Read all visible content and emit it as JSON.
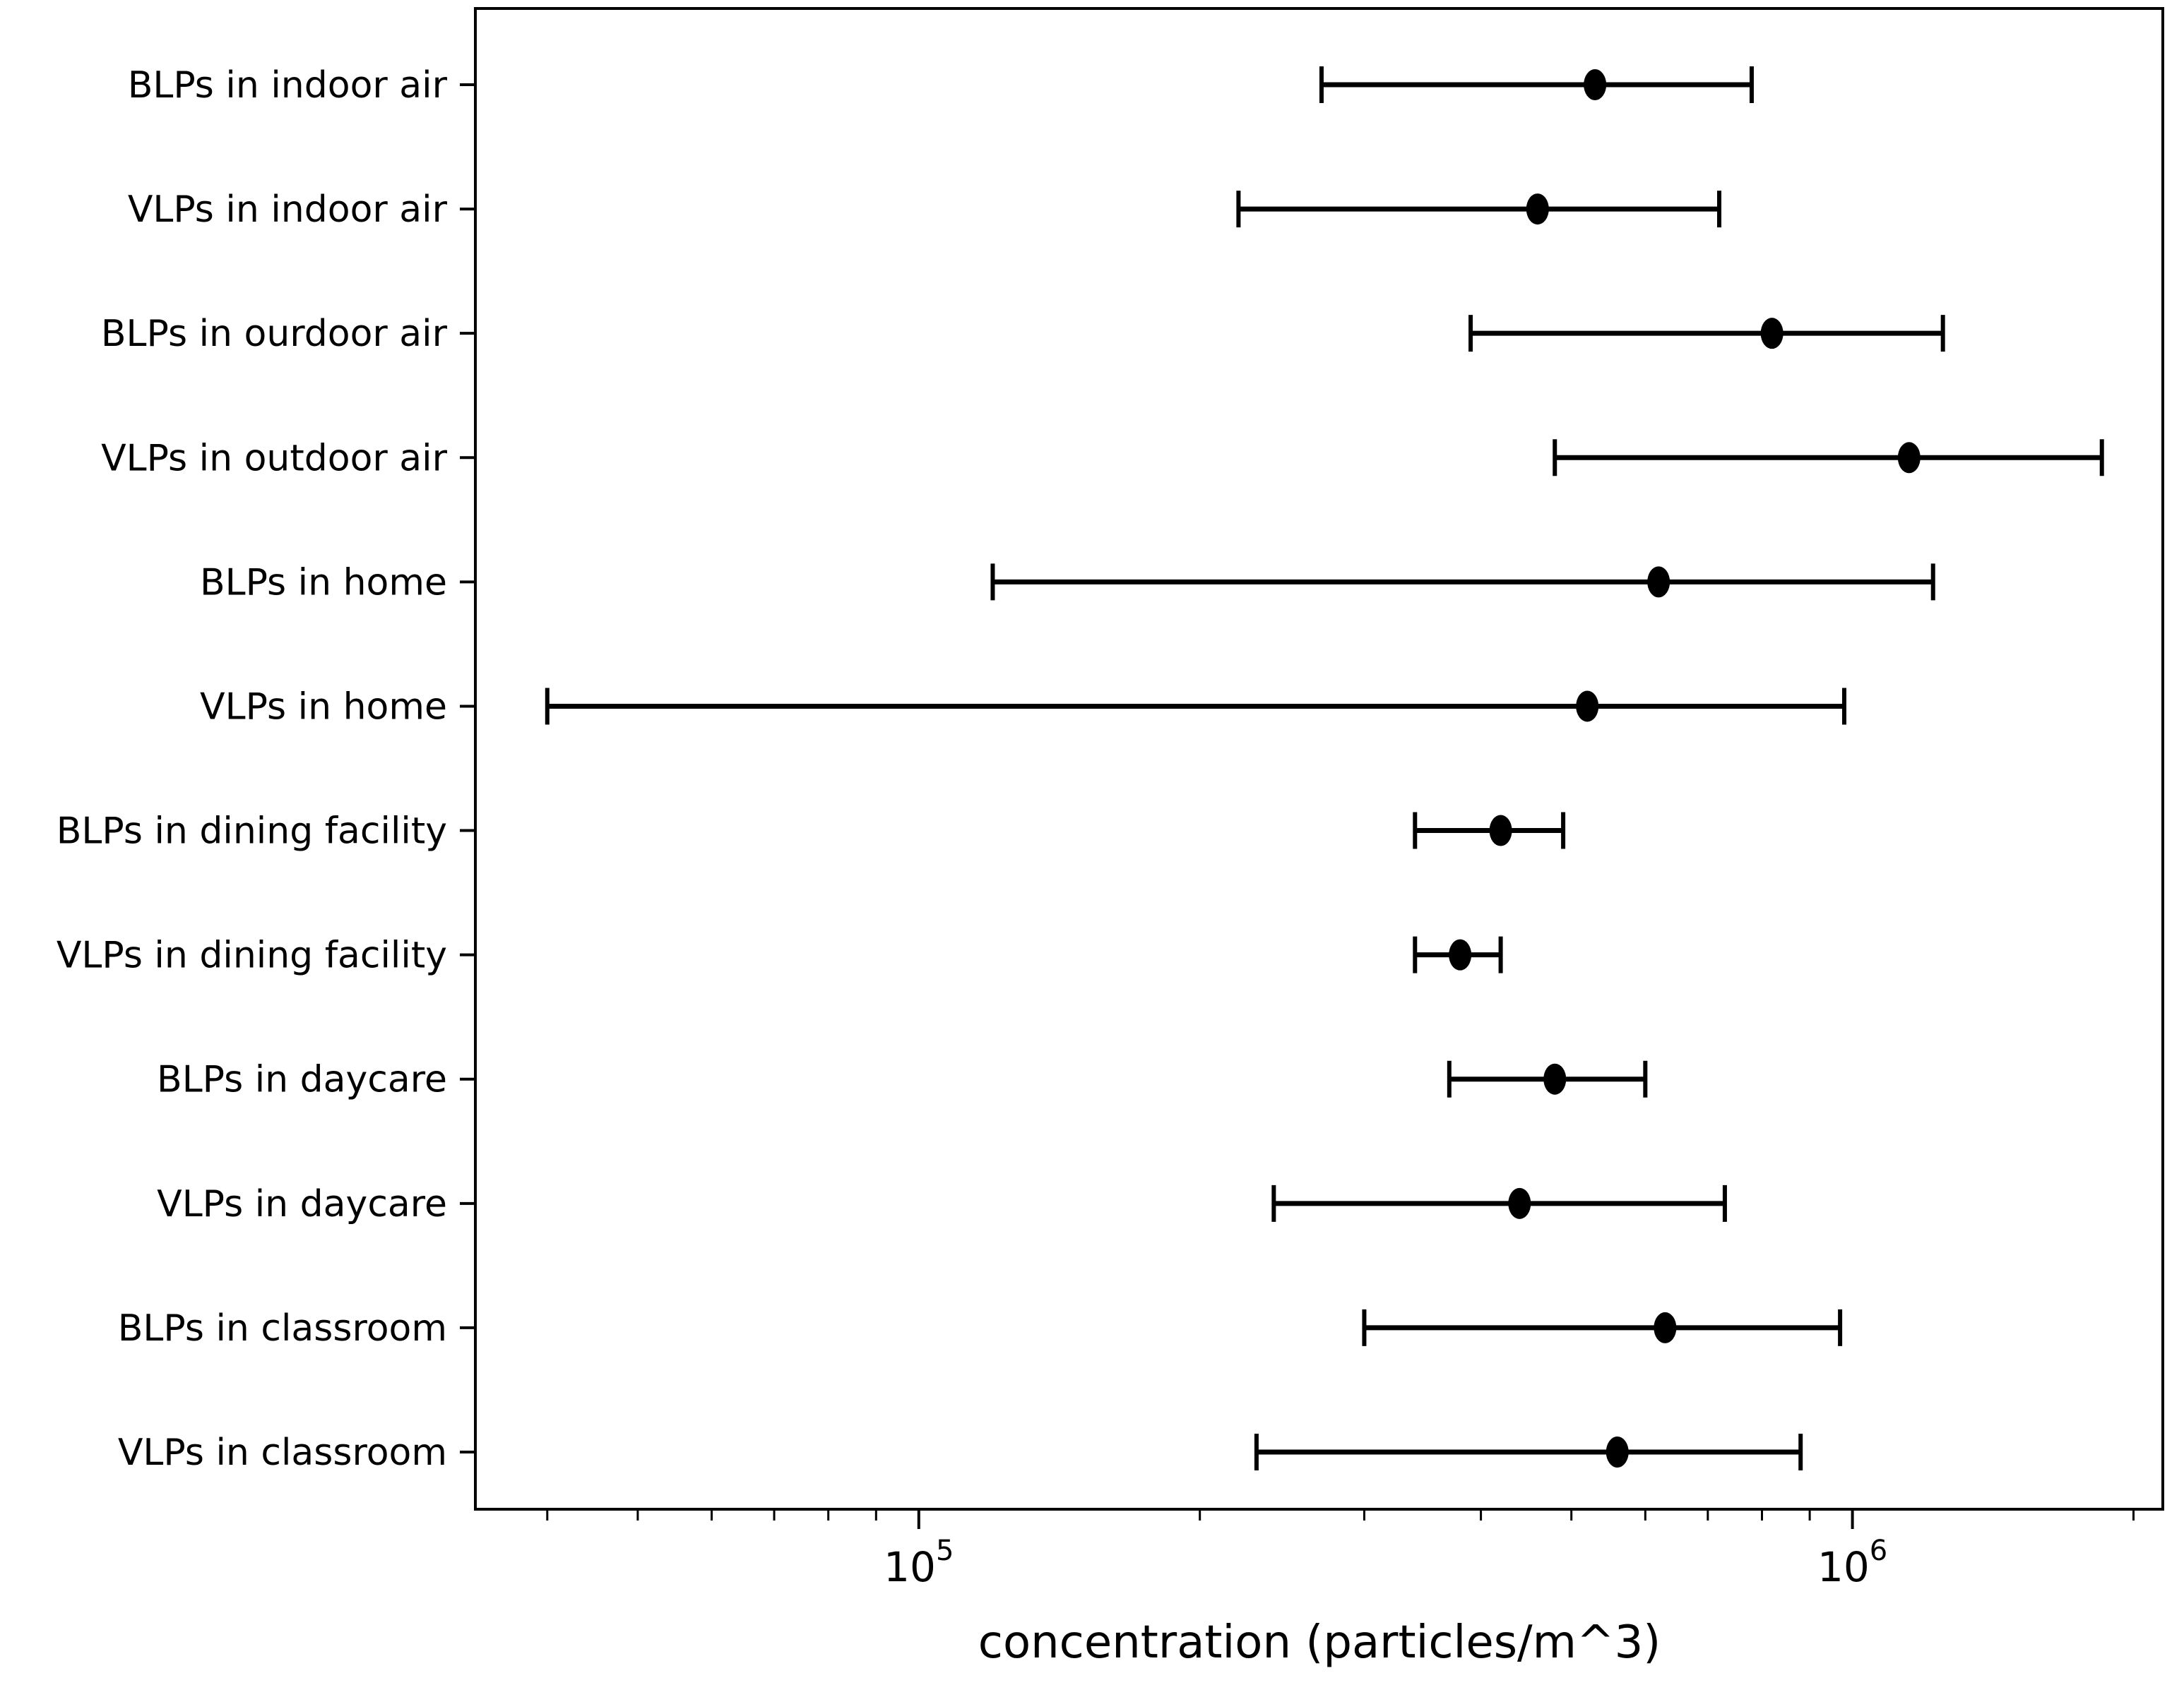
{
  "figure": {
    "background": "#ffffff",
    "foreground": "#000000"
  },
  "chart_data": {
    "type": "scatter",
    "subtype": "horizontal-errorbar",
    "title": "",
    "xlabel": "concentration (particles/m^3)",
    "ylabel": "",
    "x_scale": "log",
    "xlim": [
      33500,
      2150000
    ],
    "grid": false,
    "legend": false,
    "marker_color": "#000000",
    "x_major_ticks": [
      {
        "value": 100000,
        "base": "10",
        "exp": "5"
      },
      {
        "value": 1000000,
        "base": "10",
        "exp": "6"
      }
    ],
    "points": [
      {
        "label": "BLPs in indoor air",
        "low": 270000,
        "median": 530000,
        "high": 780000
      },
      {
        "label": "VLPs in indoor air",
        "low": 220000,
        "median": 460000,
        "high": 720000
      },
      {
        "label": "BLPs in ourdoor air",
        "low": 390000,
        "median": 820000,
        "high": 1250000
      },
      {
        "label": "VLPs in outdoor air",
        "low": 480000,
        "median": 1150000,
        "high": 1850000
      },
      {
        "label": "BLPs in home",
        "low": 120000,
        "median": 620000,
        "high": 1220000
      },
      {
        "label": "VLPs in home",
        "low": 40000,
        "median": 520000,
        "high": 980000
      },
      {
        "label": "BLPs in dining facility",
        "low": 340000,
        "median": 420000,
        "high": 490000
      },
      {
        "label": "VLPs in dining facility",
        "low": 340000,
        "median": 380000,
        "high": 420000
      },
      {
        "label": "BLPs in daycare",
        "low": 370000,
        "median": 480000,
        "high": 600000
      },
      {
        "label": "VLPs in daycare",
        "low": 240000,
        "median": 440000,
        "high": 730000
      },
      {
        "label": "BLPs in classroom",
        "low": 300000,
        "median": 630000,
        "high": 970000
      },
      {
        "label": "VLPs in classroom",
        "low": 230000,
        "median": 560000,
        "high": 880000
      }
    ]
  }
}
